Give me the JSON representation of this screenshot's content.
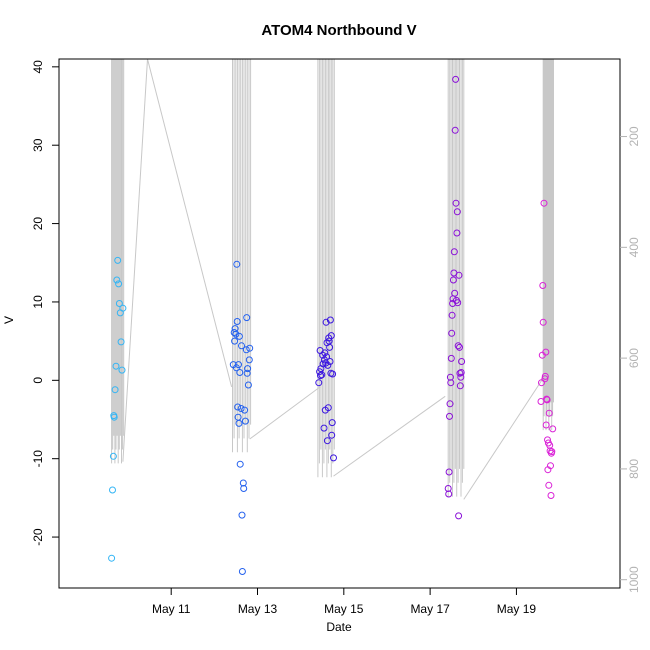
{
  "chart_data": {
    "type": "scatter",
    "title": "ATOM4 Northbound V",
    "xlabel": "Date",
    "ylabel": "V",
    "x_ticks": [
      "May 11",
      "May 13",
      "May 15",
      "May 17",
      "May 19"
    ],
    "x_tick_days": [
      11,
      13,
      15,
      17,
      19
    ],
    "xlim_days": [
      8.4,
      21.4
    ],
    "ylim": [
      -26.5,
      41.0
    ],
    "y_ticks": [
      -20,
      -10,
      0,
      10,
      20,
      30,
      40
    ],
    "right_axis": {
      "ticks": [
        200,
        400,
        600,
        800,
        1000
      ],
      "lim": [
        1015,
        60
      ],
      "color": "#b3b3b3"
    },
    "grid": false,
    "legend": "none",
    "series": [
      {
        "color": "#33b5f5",
        "points": [
          [
            9.62,
            -22.7
          ],
          [
            9.64,
            -14.0
          ],
          [
            9.66,
            -9.7
          ],
          [
            9.67,
            -4.5
          ],
          [
            9.68,
            -4.7
          ],
          [
            9.7,
            -1.2
          ],
          [
            9.72,
            1.8
          ],
          [
            9.74,
            12.8
          ],
          [
            9.76,
            15.3
          ],
          [
            9.78,
            12.3
          ],
          [
            9.8,
            9.8
          ],
          [
            9.82,
            8.6
          ],
          [
            9.84,
            4.9
          ],
          [
            9.86,
            1.3
          ],
          [
            9.88,
            9.2
          ]
        ]
      },
      {
        "color": "#2461ee",
        "points": [
          [
            12.44,
            2.0
          ],
          [
            12.46,
            6.1
          ],
          [
            12.47,
            5.0
          ],
          [
            12.48,
            6.6
          ],
          [
            12.5,
            5.9
          ],
          [
            12.51,
            1.6
          ],
          [
            12.52,
            14.8
          ],
          [
            12.53,
            7.5
          ],
          [
            12.54,
            -3.4
          ],
          [
            12.55,
            -4.7
          ],
          [
            12.56,
            2.0
          ],
          [
            12.57,
            -5.5
          ],
          [
            12.58,
            5.6
          ],
          [
            12.59,
            1.0
          ],
          [
            12.6,
            -10.7
          ],
          [
            12.62,
            -3.6
          ],
          [
            12.63,
            4.4
          ],
          [
            12.64,
            -17.2
          ],
          [
            12.65,
            -24.4
          ],
          [
            12.67,
            -13.1
          ],
          [
            12.68,
            -13.8
          ],
          [
            12.7,
            -3.8
          ],
          [
            12.72,
            -5.2
          ],
          [
            12.74,
            3.9
          ],
          [
            12.75,
            8.0
          ],
          [
            12.76,
            0.9
          ],
          [
            12.77,
            1.5
          ],
          [
            12.79,
            -0.6
          ],
          [
            12.81,
            2.6
          ],
          [
            12.82,
            4.1
          ]
        ]
      },
      {
        "color": "#3b16e0",
        "points": [
          [
            14.42,
            -0.3
          ],
          [
            14.44,
            1.1
          ],
          [
            14.45,
            3.8
          ],
          [
            14.46,
            0.6
          ],
          [
            14.47,
            1.5
          ],
          [
            14.49,
            0.7
          ],
          [
            14.51,
            3.2
          ],
          [
            14.52,
            2.1
          ],
          [
            14.54,
            -6.1
          ],
          [
            14.55,
            2.6
          ],
          [
            14.56,
            3.5
          ],
          [
            14.57,
            -3.8
          ],
          [
            14.58,
            2.2
          ],
          [
            14.59,
            7.4
          ],
          [
            14.6,
            3.0
          ],
          [
            14.61,
            4.8
          ],
          [
            14.62,
            -7.7
          ],
          [
            14.63,
            1.9
          ],
          [
            14.64,
            -3.5
          ],
          [
            14.65,
            5.4
          ],
          [
            14.66,
            5.0
          ],
          [
            14.67,
            4.2
          ],
          [
            14.68,
            2.4
          ],
          [
            14.69,
            7.7
          ],
          [
            14.7,
            0.9
          ],
          [
            14.71,
            5.7
          ],
          [
            14.72,
            -7.0
          ],
          [
            14.73,
            -5.4
          ],
          [
            14.74,
            0.8
          ],
          [
            14.76,
            -9.9
          ]
        ]
      },
      {
        "color": "#8a10d8",
        "points": [
          [
            17.42,
            -13.8
          ],
          [
            17.43,
            -14.5
          ],
          [
            17.44,
            -11.7
          ],
          [
            17.45,
            -4.6
          ],
          [
            17.46,
            -3.0
          ],
          [
            17.47,
            0.4
          ],
          [
            17.48,
            -0.3
          ],
          [
            17.49,
            2.8
          ],
          [
            17.5,
            6.0
          ],
          [
            17.51,
            8.3
          ],
          [
            17.52,
            9.8
          ],
          [
            17.53,
            10.4
          ],
          [
            17.54,
            12.8
          ],
          [
            17.55,
            13.7
          ],
          [
            17.56,
            16.4
          ],
          [
            17.57,
            11.1
          ],
          [
            17.58,
            31.9
          ],
          [
            17.59,
            38.4
          ],
          [
            17.6,
            22.6
          ],
          [
            17.61,
            10.2
          ],
          [
            17.62,
            18.8
          ],
          [
            17.63,
            21.5
          ],
          [
            17.64,
            9.9
          ],
          [
            17.65,
            4.4
          ],
          [
            17.66,
            -17.3
          ],
          [
            17.67,
            13.4
          ],
          [
            17.68,
            4.2
          ],
          [
            17.69,
            0.9
          ],
          [
            17.7,
            -0.7
          ],
          [
            17.71,
            0.4
          ],
          [
            17.72,
            1.0
          ],
          [
            17.73,
            2.4
          ]
        ]
      },
      {
        "color": "#da22d7",
        "points": [
          [
            19.57,
            -2.7
          ],
          [
            19.58,
            -0.3
          ],
          [
            19.6,
            3.2
          ],
          [
            19.61,
            12.1
          ],
          [
            19.62,
            7.4
          ],
          [
            19.64,
            22.6
          ],
          [
            19.66,
            0.2
          ],
          [
            19.67,
            0.5
          ],
          [
            19.68,
            3.6
          ],
          [
            19.69,
            -5.7
          ],
          [
            19.7,
            -2.4
          ],
          [
            19.71,
            -2.5
          ],
          [
            19.72,
            -7.6
          ],
          [
            19.73,
            -11.4
          ],
          [
            19.74,
            -8.0
          ],
          [
            19.75,
            -13.4
          ],
          [
            19.76,
            -4.2
          ],
          [
            19.77,
            -8.3
          ],
          [
            19.78,
            -9.0
          ],
          [
            19.79,
            -10.9
          ],
          [
            19.8,
            -14.7
          ],
          [
            19.81,
            -9.3
          ],
          [
            19.82,
            -9.1
          ],
          [
            19.84,
            -6.2
          ]
        ]
      }
    ],
    "depth_track": {
      "color": "#c8c8c8",
      "connectors": [
        [
          [
            9.88,
            787
          ],
          [
            10.45,
            60
          ],
          [
            12.4,
            652
          ]
        ],
        [
          [
            12.82,
            746
          ],
          [
            14.45,
            652
          ]
        ],
        [
          [
            14.76,
            813
          ],
          [
            17.35,
            669
          ]
        ],
        [
          [
            17.78,
            855
          ],
          [
            19.62,
            636
          ]
        ]
      ],
      "spike_groups": [
        {
          "x0": 9.62,
          "x1": 9.9,
          "bottom": 790
        },
        {
          "x0": 12.42,
          "x1": 12.84,
          "bottom": 770
        },
        {
          "x0": 14.4,
          "x1": 14.78,
          "bottom": 815
        },
        {
          "x0": 17.42,
          "x1": 17.78,
          "bottom": 850
        },
        {
          "x0": 19.62,
          "x1": 19.86,
          "bottom": 730
        }
      ]
    }
  }
}
